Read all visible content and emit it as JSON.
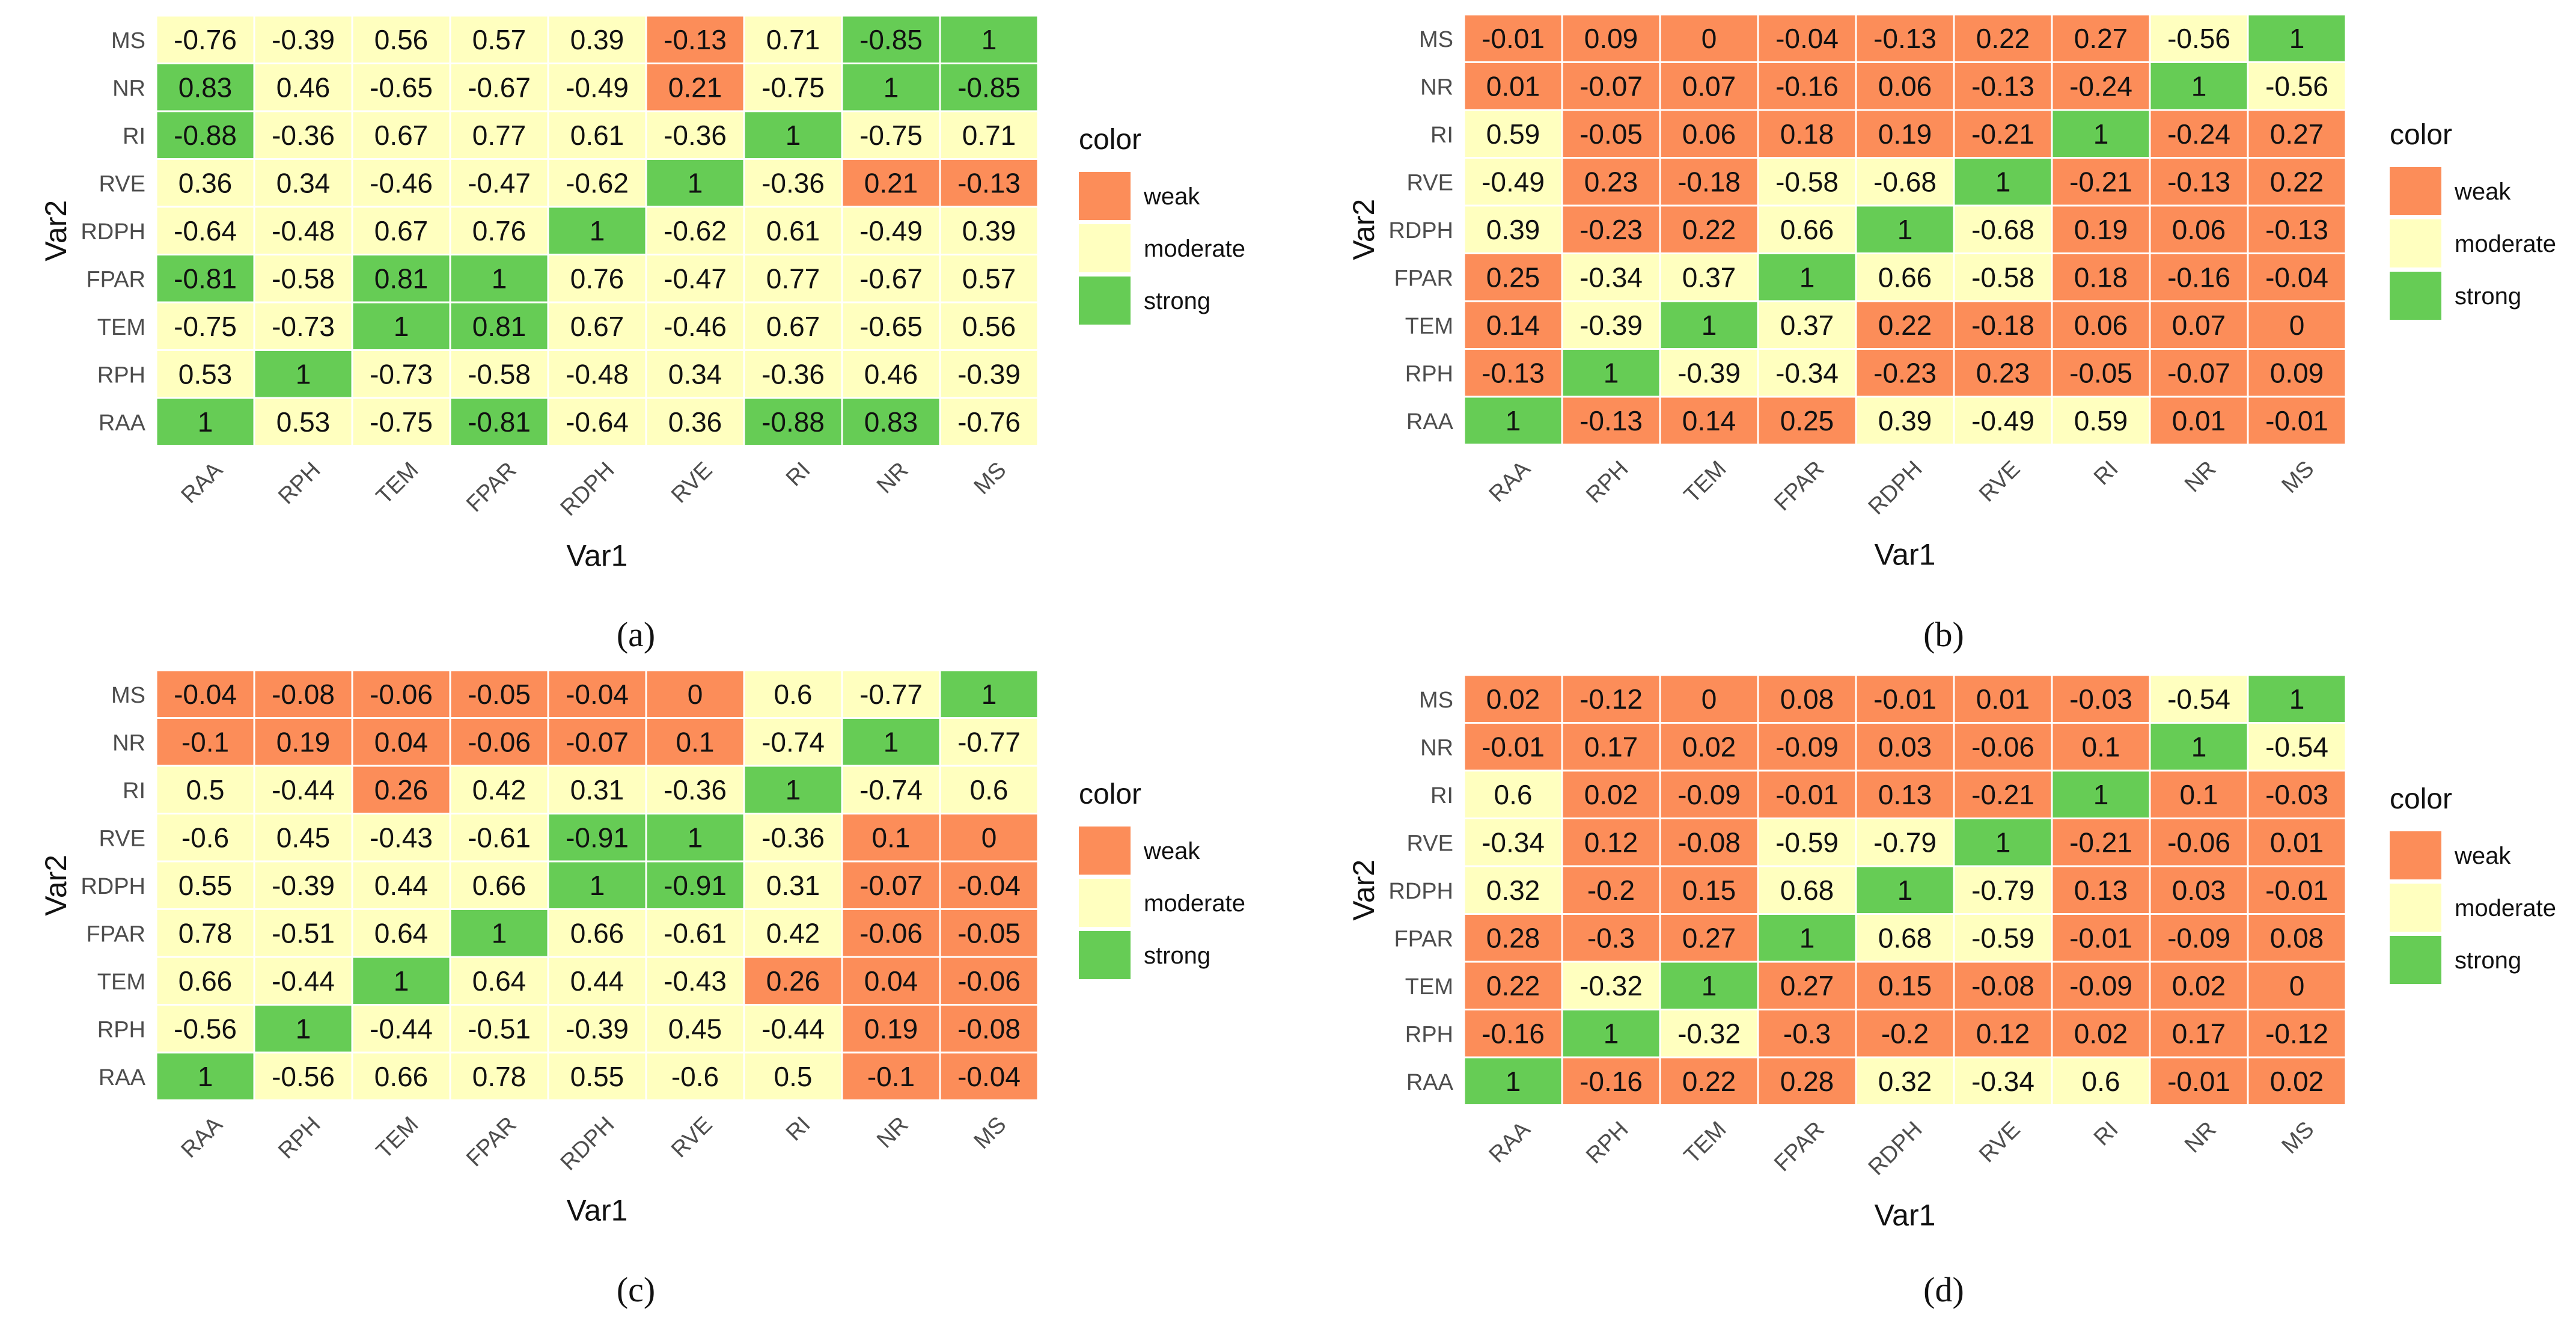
{
  "legend": {
    "title": "color",
    "items": [
      {
        "label": "weak",
        "color": "#FC8D59"
      },
      {
        "label": "moderate",
        "color": "#FFFFBF"
      },
      {
        "label": "strong",
        "color": "#66CC55"
      }
    ]
  },
  "chart_data": [
    {
      "type": "heatmap",
      "panel": "(a)",
      "xlabel": "Var1",
      "ylabel": "Var2",
      "x": [
        "RAA",
        "RPH",
        "TEM",
        "FPAR",
        "RDPH",
        "RVE",
        "RI",
        "NR",
        "MS"
      ],
      "y_top_to_bottom": [
        "MS",
        "NR",
        "RI",
        "RVE",
        "RDPH",
        "FPAR",
        "TEM",
        "RPH",
        "RAA"
      ],
      "values": [
        [
          -0.76,
          -0.39,
          0.56,
          0.57,
          0.39,
          -0.13,
          0.71,
          -0.85,
          1
        ],
        [
          0.83,
          0.46,
          -0.65,
          -0.67,
          -0.49,
          0.21,
          -0.75,
          1,
          -0.85
        ],
        [
          -0.88,
          -0.36,
          0.67,
          0.77,
          0.61,
          -0.36,
          1,
          -0.75,
          0.71
        ],
        [
          0.36,
          0.34,
          -0.46,
          -0.47,
          -0.62,
          1,
          -0.36,
          0.21,
          -0.13
        ],
        [
          -0.64,
          -0.48,
          0.67,
          0.76,
          1,
          -0.62,
          0.61,
          -0.49,
          0.39
        ],
        [
          -0.81,
          -0.58,
          0.81,
          1,
          0.76,
          -0.47,
          0.77,
          -0.67,
          0.57
        ],
        [
          -0.75,
          -0.73,
          1,
          0.81,
          0.67,
          -0.46,
          0.67,
          -0.65,
          0.56
        ],
        [
          0.53,
          1,
          -0.73,
          -0.58,
          -0.48,
          0.34,
          -0.36,
          0.46,
          -0.39
        ],
        [
          1,
          0.53,
          -0.75,
          -0.81,
          -0.64,
          0.36,
          -0.88,
          0.83,
          -0.76
        ]
      ],
      "strength": [
        [
          "m",
          "m",
          "m",
          "m",
          "m",
          "w",
          "m",
          "s",
          "s"
        ],
        [
          "s",
          "m",
          "m",
          "m",
          "m",
          "w",
          "m",
          "s",
          "s"
        ],
        [
          "s",
          "m",
          "m",
          "m",
          "m",
          "m",
          "s",
          "m",
          "m"
        ],
        [
          "m",
          "m",
          "m",
          "m",
          "m",
          "s",
          "m",
          "w",
          "w"
        ],
        [
          "m",
          "m",
          "m",
          "m",
          "s",
          "m",
          "m",
          "m",
          "m"
        ],
        [
          "s",
          "m",
          "s",
          "s",
          "m",
          "m",
          "m",
          "m",
          "m"
        ],
        [
          "m",
          "m",
          "s",
          "s",
          "m",
          "m",
          "m",
          "m",
          "m"
        ],
        [
          "m",
          "s",
          "m",
          "m",
          "m",
          "m",
          "m",
          "m",
          "m"
        ],
        [
          "s",
          "m",
          "m",
          "s",
          "m",
          "m",
          "s",
          "s",
          "m"
        ]
      ]
    },
    {
      "type": "heatmap",
      "panel": "(b)",
      "xlabel": "Var1",
      "ylabel": "Var2",
      "x": [
        "RAA",
        "RPH",
        "TEM",
        "FPAR",
        "RDPH",
        "RVE",
        "RI",
        "NR",
        "MS"
      ],
      "y_top_to_bottom": [
        "MS",
        "NR",
        "RI",
        "RVE",
        "RDPH",
        "FPAR",
        "TEM",
        "RPH",
        "RAA"
      ],
      "values": [
        [
          -0.01,
          0.09,
          0,
          -0.04,
          -0.13,
          0.22,
          0.27,
          -0.56,
          1
        ],
        [
          0.01,
          -0.07,
          0.07,
          -0.16,
          0.06,
          -0.13,
          -0.24,
          1,
          -0.56
        ],
        [
          0.59,
          -0.05,
          0.06,
          0.18,
          0.19,
          -0.21,
          1,
          -0.24,
          0.27
        ],
        [
          -0.49,
          0.23,
          -0.18,
          -0.58,
          -0.68,
          1,
          -0.21,
          -0.13,
          0.22
        ],
        [
          0.39,
          -0.23,
          0.22,
          0.66,
          1,
          -0.68,
          0.19,
          0.06,
          -0.13
        ],
        [
          0.25,
          -0.34,
          0.37,
          1,
          0.66,
          -0.58,
          0.18,
          -0.16,
          -0.04
        ],
        [
          0.14,
          -0.39,
          1,
          0.37,
          0.22,
          -0.18,
          0.06,
          0.07,
          0
        ],
        [
          -0.13,
          1,
          -0.39,
          -0.34,
          -0.23,
          0.23,
          -0.05,
          -0.07,
          0.09
        ],
        [
          1,
          -0.13,
          0.14,
          0.25,
          0.39,
          -0.49,
          0.59,
          0.01,
          -0.01
        ]
      ],
      "strength": [
        [
          "w",
          "w",
          "w",
          "w",
          "w",
          "w",
          "w",
          "m",
          "s"
        ],
        [
          "w",
          "w",
          "w",
          "w",
          "w",
          "w",
          "w",
          "s",
          "m"
        ],
        [
          "m",
          "w",
          "w",
          "w",
          "w",
          "w",
          "s",
          "w",
          "w"
        ],
        [
          "m",
          "w",
          "w",
          "m",
          "m",
          "s",
          "w",
          "w",
          "w"
        ],
        [
          "m",
          "w",
          "w",
          "m",
          "s",
          "m",
          "w",
          "w",
          "w"
        ],
        [
          "w",
          "m",
          "m",
          "s",
          "m",
          "m",
          "w",
          "w",
          "w"
        ],
        [
          "w",
          "m",
          "s",
          "m",
          "w",
          "w",
          "w",
          "w",
          "w"
        ],
        [
          "w",
          "s",
          "m",
          "m",
          "w",
          "w",
          "w",
          "w",
          "w"
        ],
        [
          "s",
          "w",
          "w",
          "w",
          "m",
          "m",
          "m",
          "w",
          "w"
        ]
      ]
    },
    {
      "type": "heatmap",
      "panel": "(c)",
      "xlabel": "Var1",
      "ylabel": "Var2",
      "x": [
        "RAA",
        "RPH",
        "TEM",
        "FPAR",
        "RDPH",
        "RVE",
        "RI",
        "NR",
        "MS"
      ],
      "y_top_to_bottom": [
        "MS",
        "NR",
        "RI",
        "RVE",
        "RDPH",
        "FPAR",
        "TEM",
        "RPH",
        "RAA"
      ],
      "values": [
        [
          -0.04,
          -0.08,
          -0.06,
          -0.05,
          -0.04,
          0,
          0.6,
          -0.77,
          1
        ],
        [
          -0.1,
          0.19,
          0.04,
          -0.06,
          -0.07,
          0.1,
          -0.74,
          1,
          -0.77
        ],
        [
          0.5,
          -0.44,
          0.26,
          0.42,
          0.31,
          -0.36,
          1,
          -0.74,
          0.6
        ],
        [
          -0.6,
          0.45,
          -0.43,
          -0.61,
          -0.91,
          1,
          -0.36,
          0.1,
          0
        ],
        [
          0.55,
          -0.39,
          0.44,
          0.66,
          1,
          -0.91,
          0.31,
          -0.07,
          -0.04
        ],
        [
          0.78,
          -0.51,
          0.64,
          1,
          0.66,
          -0.61,
          0.42,
          -0.06,
          -0.05
        ],
        [
          0.66,
          -0.44,
          1,
          0.64,
          0.44,
          -0.43,
          0.26,
          0.04,
          -0.06
        ],
        [
          -0.56,
          1,
          -0.44,
          -0.51,
          -0.39,
          0.45,
          -0.44,
          0.19,
          -0.08
        ],
        [
          1,
          -0.56,
          0.66,
          0.78,
          0.55,
          -0.6,
          0.5,
          -0.1,
          -0.04
        ]
      ],
      "strength": [
        [
          "w",
          "w",
          "w",
          "w",
          "w",
          "w",
          "m",
          "m",
          "s"
        ],
        [
          "w",
          "w",
          "w",
          "w",
          "w",
          "w",
          "m",
          "s",
          "m"
        ],
        [
          "m",
          "m",
          "w",
          "m",
          "m",
          "m",
          "s",
          "m",
          "m"
        ],
        [
          "m",
          "m",
          "m",
          "m",
          "s",
          "s",
          "m",
          "w",
          "w"
        ],
        [
          "m",
          "m",
          "m",
          "m",
          "s",
          "s",
          "m",
          "w",
          "w"
        ],
        [
          "m",
          "m",
          "m",
          "s",
          "m",
          "m",
          "m",
          "w",
          "w"
        ],
        [
          "m",
          "m",
          "s",
          "m",
          "m",
          "m",
          "w",
          "w",
          "w"
        ],
        [
          "m",
          "s",
          "m",
          "m",
          "m",
          "m",
          "m",
          "w",
          "w"
        ],
        [
          "s",
          "m",
          "m",
          "m",
          "m",
          "m",
          "m",
          "w",
          "w"
        ]
      ]
    },
    {
      "type": "heatmap",
      "panel": "(d)",
      "xlabel": "Var1",
      "ylabel": "Var2",
      "x": [
        "RAA",
        "RPH",
        "TEM",
        "FPAR",
        "RDPH",
        "RVE",
        "RI",
        "NR",
        "MS"
      ],
      "y_top_to_bottom": [
        "MS",
        "NR",
        "RI",
        "RVE",
        "RDPH",
        "FPAR",
        "TEM",
        "RPH",
        "RAA"
      ],
      "values": [
        [
          0.02,
          -0.12,
          0,
          0.08,
          -0.01,
          0.01,
          -0.03,
          -0.54,
          1
        ],
        [
          -0.01,
          0.17,
          0.02,
          -0.09,
          0.03,
          -0.06,
          0.1,
          1,
          -0.54
        ],
        [
          0.6,
          0.02,
          -0.09,
          -0.01,
          0.13,
          -0.21,
          1,
          0.1,
          -0.03
        ],
        [
          -0.34,
          0.12,
          -0.08,
          -0.59,
          -0.79,
          1,
          -0.21,
          -0.06,
          0.01
        ],
        [
          0.32,
          -0.2,
          0.15,
          0.68,
          1,
          -0.79,
          0.13,
          0.03,
          -0.01
        ],
        [
          0.28,
          -0.3,
          0.27,
          1,
          0.68,
          -0.59,
          -0.01,
          -0.09,
          0.08
        ],
        [
          0.22,
          -0.32,
          1,
          0.27,
          0.15,
          -0.08,
          -0.09,
          0.02,
          0
        ],
        [
          -0.16,
          1,
          -0.32,
          -0.3,
          -0.2,
          0.12,
          0.02,
          0.17,
          -0.12
        ],
        [
          1,
          -0.16,
          0.22,
          0.28,
          0.32,
          -0.34,
          0.6,
          -0.01,
          0.02
        ]
      ],
      "strength": [
        [
          "w",
          "w",
          "w",
          "w",
          "w",
          "w",
          "w",
          "m",
          "s"
        ],
        [
          "w",
          "w",
          "w",
          "w",
          "w",
          "w",
          "w",
          "s",
          "m"
        ],
        [
          "m",
          "w",
          "w",
          "w",
          "w",
          "w",
          "s",
          "w",
          "w"
        ],
        [
          "m",
          "w",
          "w",
          "m",
          "m",
          "s",
          "w",
          "w",
          "w"
        ],
        [
          "m",
          "w",
          "w",
          "m",
          "s",
          "m",
          "w",
          "w",
          "w"
        ],
        [
          "w",
          "w",
          "w",
          "s",
          "m",
          "m",
          "w",
          "w",
          "w"
        ],
        [
          "w",
          "m",
          "s",
          "w",
          "w",
          "w",
          "w",
          "w",
          "w"
        ],
        [
          "w",
          "s",
          "m",
          "w",
          "w",
          "w",
          "w",
          "w",
          "w"
        ],
        [
          "s",
          "w",
          "w",
          "w",
          "m",
          "m",
          "m",
          "w",
          "w"
        ]
      ]
    }
  ]
}
